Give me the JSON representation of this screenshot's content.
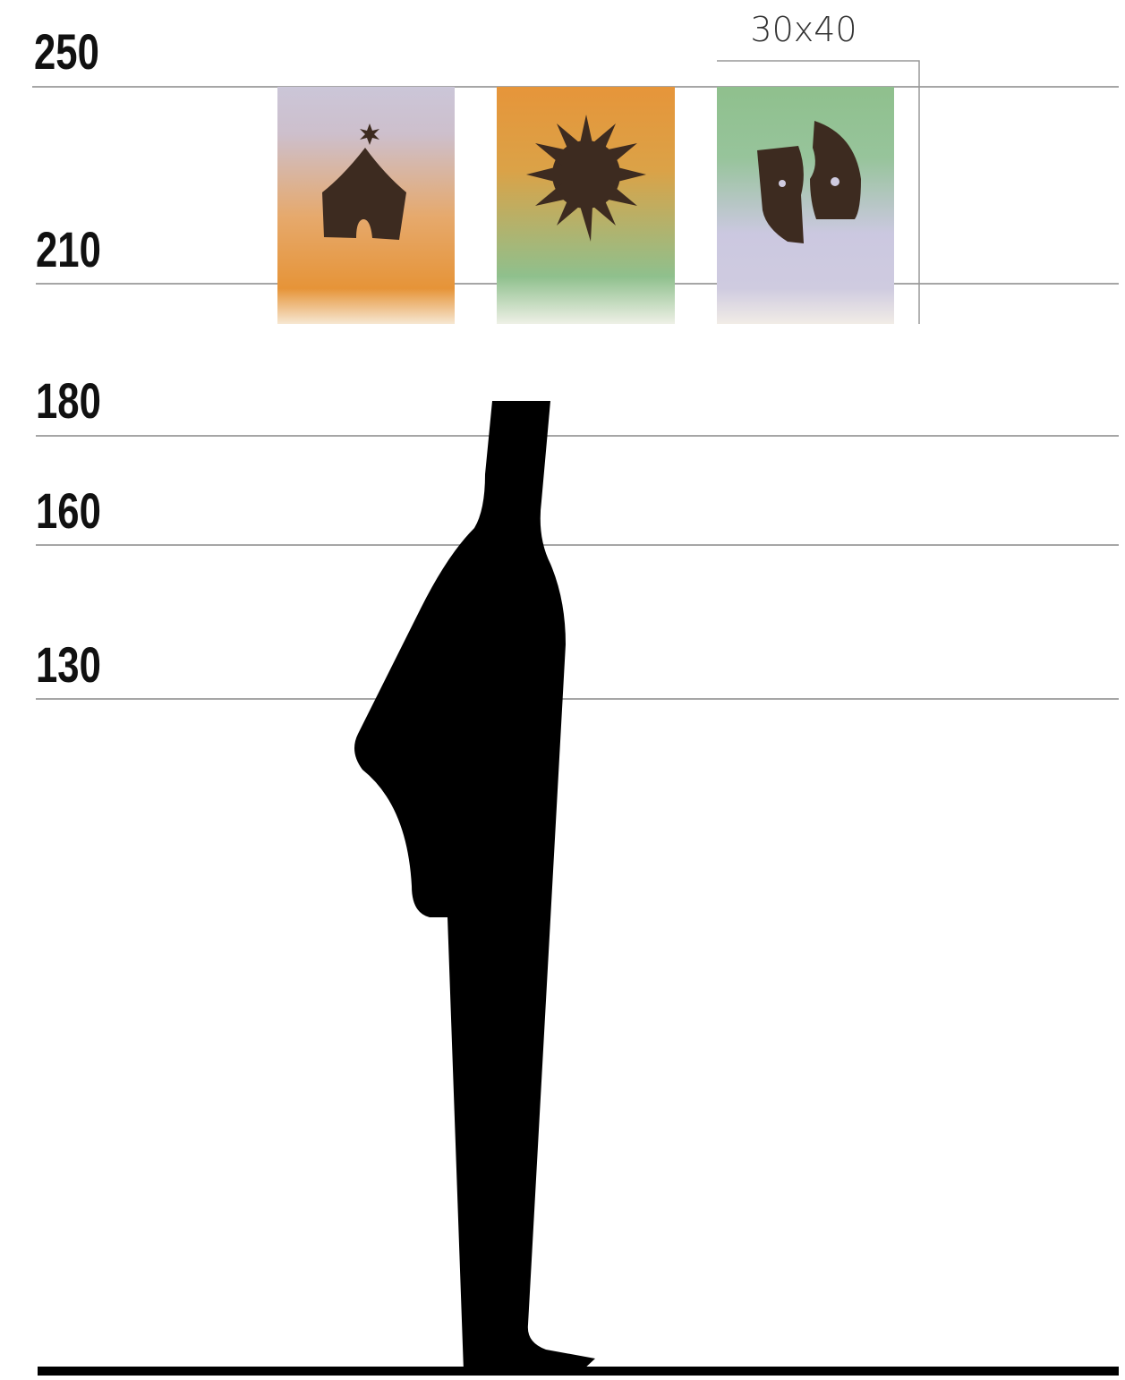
{
  "scale": {
    "labels": [
      "250",
      "210",
      "180",
      "160",
      "130"
    ]
  },
  "poster_size": "30x40"
}
